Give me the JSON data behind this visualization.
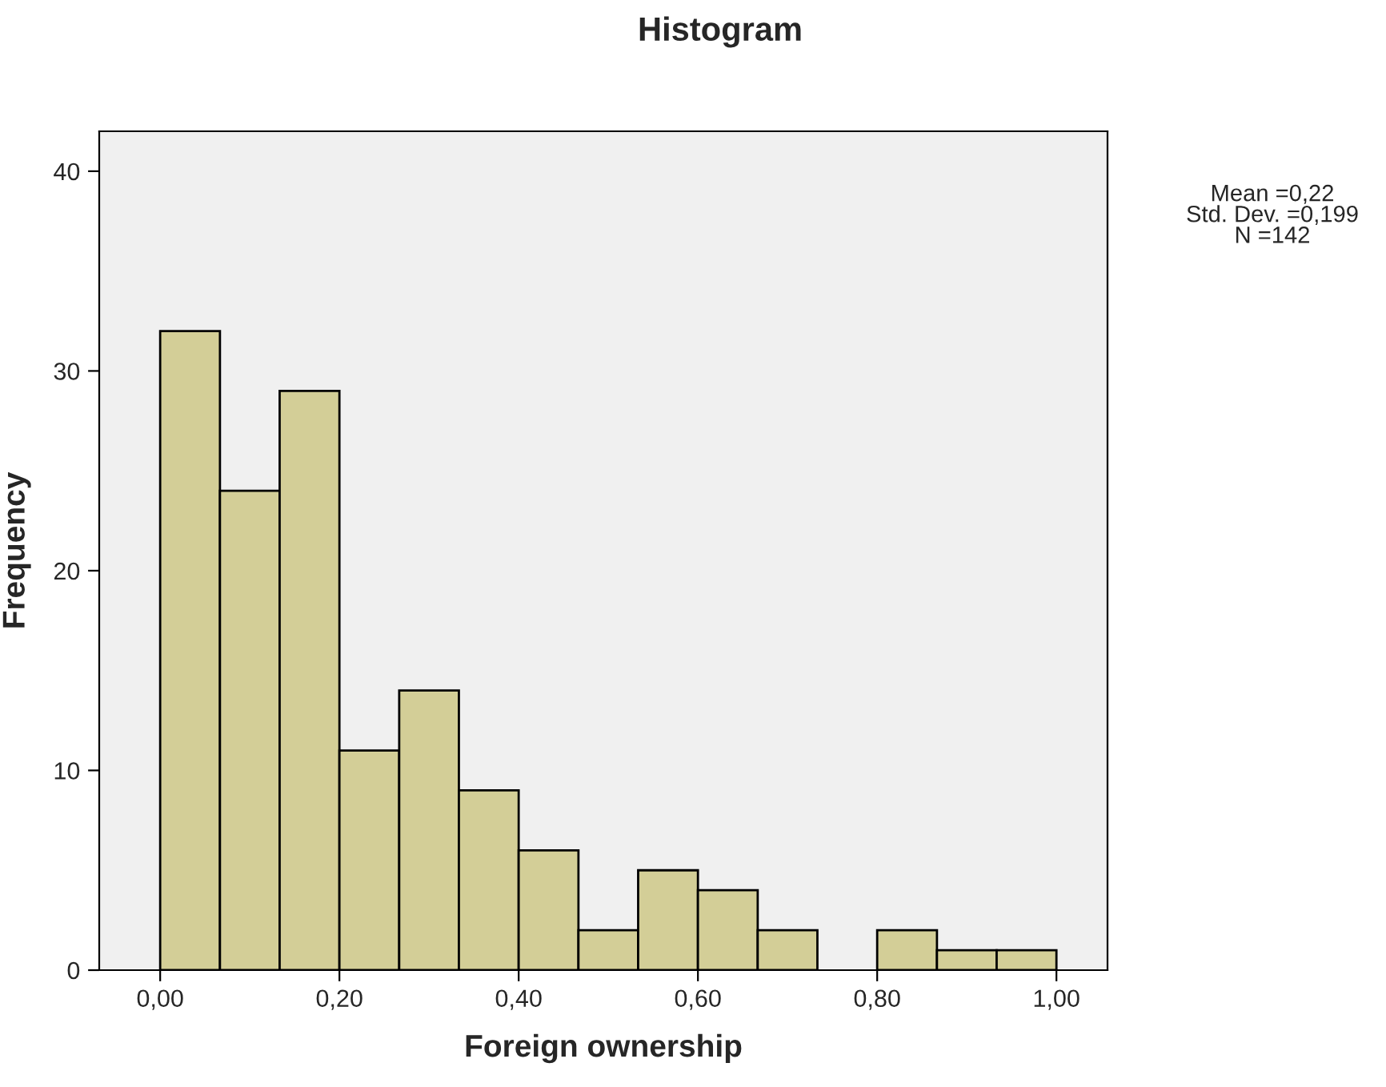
{
  "chart_data": {
    "type": "histogram",
    "title": "Histogram",
    "xlabel": "Foreign ownership",
    "ylabel": "Frequency",
    "bins": [
      0,
      0.0667,
      0.1333,
      0.2,
      0.2667,
      0.3333,
      0.4,
      0.4667,
      0.5333,
      0.6,
      0.6667,
      0.7333,
      0.8,
      0.8667,
      0.9333,
      1.0
    ],
    "values": [
      32,
      24,
      29,
      11,
      14,
      9,
      6,
      2,
      5,
      4,
      2,
      0,
      2,
      1,
      1
    ],
    "color": "#d3ce97",
    "xlim": [
      -0.068,
      1.057
    ],
    "ylim": [
      0,
      42
    ],
    "xticks": [
      {
        "value": 0,
        "label": "0,00"
      },
      {
        "value": 0.2,
        "label": "0,20"
      },
      {
        "value": 0.4,
        "label": "0,40"
      },
      {
        "value": 0.6,
        "label": "0,60"
      },
      {
        "value": 0.8,
        "label": "0,80"
      },
      {
        "value": 1.0,
        "label": "1,00"
      }
    ],
    "yticks": [
      0,
      10,
      20,
      30,
      40
    ],
    "grid": false,
    "annotations": [
      "Mean =0,22",
      "Std. Dev. =0,199",
      "N =142"
    ]
  }
}
